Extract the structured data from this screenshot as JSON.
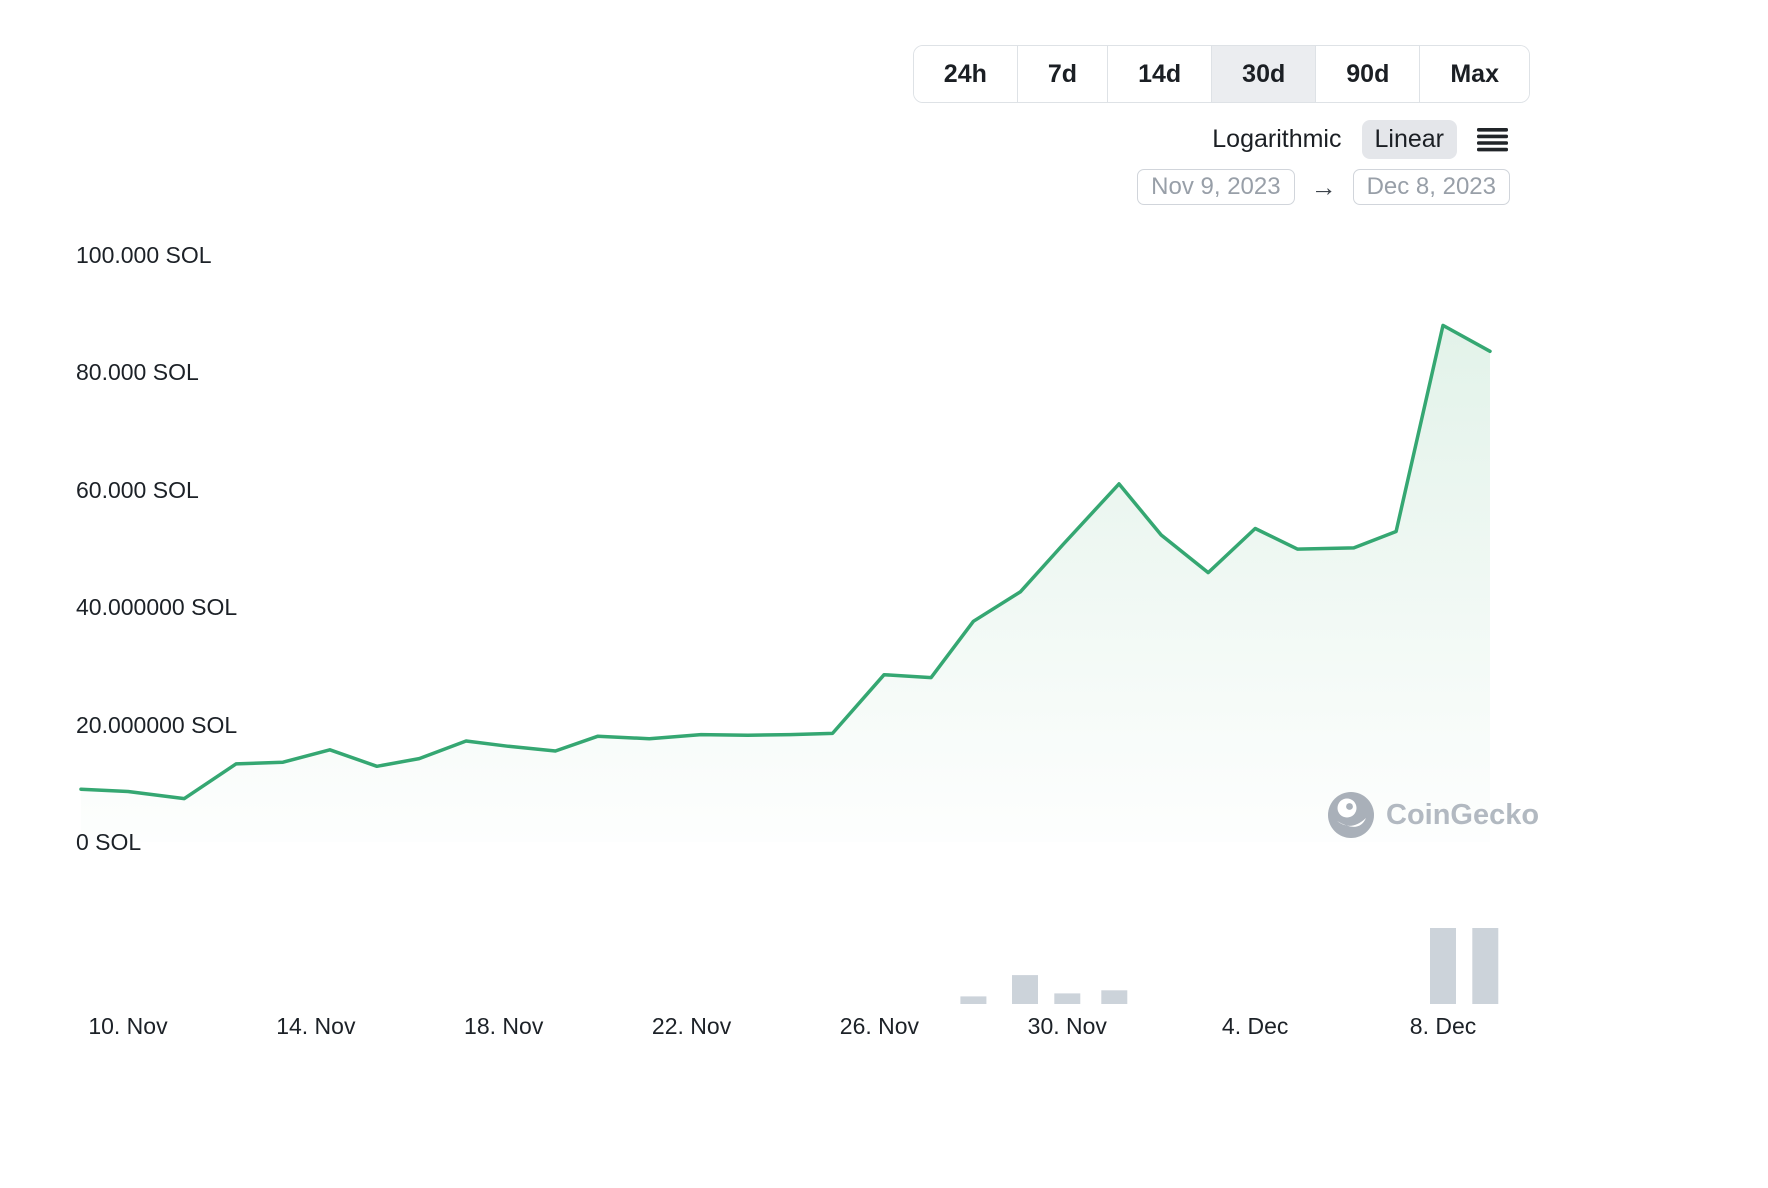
{
  "header": {
    "range_buttons": [
      {
        "label": "24h",
        "active": false
      },
      {
        "label": "7d",
        "active": false
      },
      {
        "label": "14d",
        "active": false
      },
      {
        "label": "30d",
        "active": true
      },
      {
        "label": "90d",
        "active": false
      },
      {
        "label": "Max",
        "active": false
      }
    ],
    "scale_toggle": {
      "options": [
        "Logarithmic",
        "Linear"
      ],
      "selected": "Linear"
    },
    "date_range": {
      "from": "Nov 9, 2023",
      "to": "Dec 8, 2023",
      "arrow": "→"
    }
  },
  "watermark": {
    "label": "CoinGecko"
  },
  "chart_data": {
    "type": "area",
    "unit": "SOL",
    "xlim_days": [
      0,
      30
    ],
    "ylim": [
      0,
      100
    ],
    "date_start": "Nov 9, 2023",
    "date_end": "Dec 8, 2023",
    "points": [
      [
        0,
        9.0
      ],
      [
        1,
        8.6
      ],
      [
        2.2,
        7.4
      ],
      [
        3.3,
        13.3
      ],
      [
        4.3,
        13.6
      ],
      [
        5.3,
        15.7
      ],
      [
        6.3,
        12.9
      ],
      [
        7.2,
        14.2
      ],
      [
        8.2,
        17.2
      ],
      [
        9.1,
        16.3
      ],
      [
        10.1,
        15.5
      ],
      [
        11,
        18.0
      ],
      [
        12.1,
        17.6
      ],
      [
        13.2,
        18.3
      ],
      [
        14.2,
        18.2
      ],
      [
        15.1,
        18.3
      ],
      [
        16,
        18.5
      ],
      [
        17.1,
        28.5
      ],
      [
        18.1,
        28.0
      ],
      [
        19,
        37.6
      ],
      [
        20,
        42.6
      ],
      [
        20.9,
        50.6
      ],
      [
        22.1,
        61.0
      ],
      [
        23,
        52.3
      ],
      [
        24,
        45.9
      ],
      [
        25,
        53.4
      ],
      [
        25.9,
        49.9
      ],
      [
        27.1,
        50.1
      ],
      [
        28,
        52.9
      ],
      [
        29,
        88.0
      ],
      [
        30,
        83.6
      ]
    ],
    "y_ticks": [
      {
        "value": 0,
        "label": "0 SOL"
      },
      {
        "value": 20,
        "label": "20.000000 SOL"
      },
      {
        "value": 40,
        "label": "40.000000 SOL"
      },
      {
        "value": 60,
        "label": "60.000 SOL"
      },
      {
        "value": 80,
        "label": "80.000 SOL"
      },
      {
        "value": 100,
        "label": "100.000 SOL"
      }
    ],
    "x_ticks": [
      {
        "day": 1,
        "label": "10. Nov"
      },
      {
        "day": 5,
        "label": "14. Nov"
      },
      {
        "day": 9,
        "label": "18. Nov"
      },
      {
        "day": 13,
        "label": "22. Nov"
      },
      {
        "day": 17,
        "label": "26. Nov"
      },
      {
        "day": 21,
        "label": "30. Nov"
      },
      {
        "day": 25,
        "label": "4. Dec"
      },
      {
        "day": 29,
        "label": "8. Dec"
      }
    ],
    "volume_bars": [
      {
        "day": 19.0,
        "pct": 10
      },
      {
        "day": 20.1,
        "pct": 38
      },
      {
        "day": 21.0,
        "pct": 14
      },
      {
        "day": 22.0,
        "pct": 18
      },
      {
        "day": 29.0,
        "pct": 100
      },
      {
        "day": 29.9,
        "pct": 100
      }
    ],
    "line_color": "#35a772",
    "fill_color": "#4caf78",
    "fill_opacity_top": 0.16,
    "fill_opacity_bottom": 0.01,
    "volume_color": "#ccd3da",
    "grid": false,
    "legend": "none"
  }
}
